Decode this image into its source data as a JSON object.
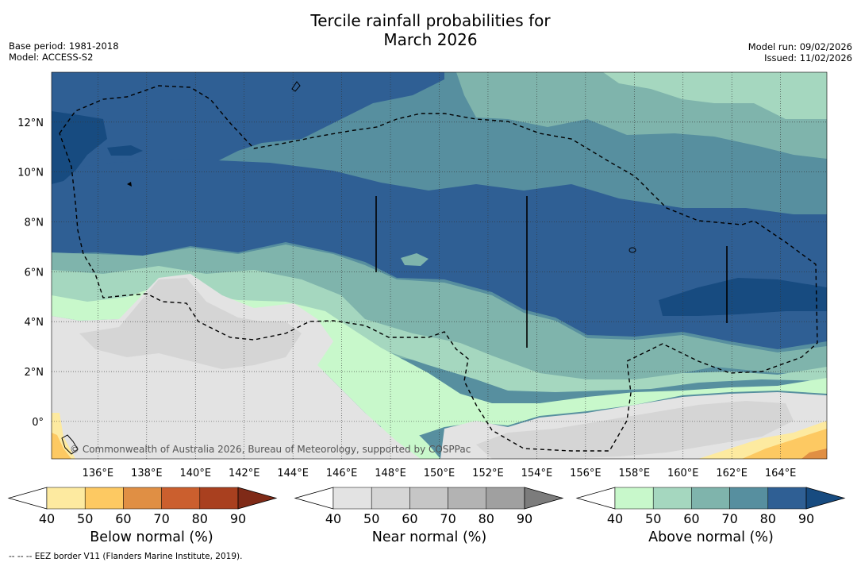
{
  "title": {
    "line1": "Tercile rainfall probabilities for",
    "line2": "March 2026"
  },
  "meta": {
    "base_period": "Base period: 1981-2018",
    "model": "Model: ACCESS-S2",
    "model_run": "Model run: 09/02/2026",
    "issued": "Issued: 11/02/2026"
  },
  "map": {
    "lat_labels": [
      {
        "value": 12,
        "label": "12°N"
      },
      {
        "value": 10,
        "label": "10°N"
      },
      {
        "value": 8,
        "label": "8°N"
      },
      {
        "value": 6,
        "label": "6°N"
      },
      {
        "value": 4,
        "label": "4°N"
      },
      {
        "value": 2,
        "label": "2°N"
      },
      {
        "value": 0,
        "label": "0°"
      }
    ],
    "lon_labels": [
      {
        "value": 136,
        "label": "136°E"
      },
      {
        "value": 138,
        "label": "138°E"
      },
      {
        "value": 140,
        "label": "140°E"
      },
      {
        "value": 142,
        "label": "142°E"
      },
      {
        "value": 144,
        "label": "144°E"
      },
      {
        "value": 146,
        "label": "146°E"
      },
      {
        "value": 148,
        "label": "148°E"
      },
      {
        "value": 150,
        "label": "150°E"
      },
      {
        "value": 152,
        "label": "152°E"
      },
      {
        "value": 154,
        "label": "154°E"
      },
      {
        "value": 156,
        "label": "156°E"
      },
      {
        "value": 158,
        "label": "158°E"
      },
      {
        "value": 160,
        "label": "160°E"
      },
      {
        "value": 162,
        "label": "162°E"
      },
      {
        "value": 164,
        "label": "164°E"
      }
    ],
    "copyright": "© Commonwealth of Australia 2026, Bureau of Meteorology, supported by COSPPac"
  },
  "colorbars": [
    {
      "name": "below",
      "label": "Below normal (%)",
      "ticks": [
        "40",
        "50",
        "60",
        "70",
        "80",
        "90"
      ],
      "colors": [
        "#fdeaa0",
        "#fdc962",
        "#e08f44",
        "#cb5f2e",
        "#a9401f"
      ],
      "extend": "#7f2a17"
    },
    {
      "name": "near",
      "label": "Near normal (%)",
      "ticks": [
        "40",
        "50",
        "60",
        "70",
        "80",
        "90"
      ],
      "colors": [
        "#e3e3e3",
        "#d5d5d5",
        "#c6c6c6",
        "#b3b3b3",
        "#a0a0a0"
      ],
      "extend": "#7c7c7c"
    },
    {
      "name": "above",
      "label": "Above normal (%)",
      "ticks": [
        "40",
        "50",
        "60",
        "70",
        "80",
        "90"
      ],
      "colors": [
        "#c8f8cb",
        "#a5d7bf",
        "#7fb4ac",
        "#578f9f",
        "#2f5f94"
      ],
      "extend": "#174b80"
    }
  ],
  "colors": {
    "above50": "#a5d7bf",
    "above60": "#7fb4ac",
    "above70": "#578f9f",
    "above80": "#2f5f94",
    "above90": "#174b80",
    "above40": "#c8f8cb",
    "near40": "#e3e3e3",
    "near50": "#d5d5d5",
    "below40": "#fdeaa0",
    "below50": "#fdc962",
    "below60": "#e08f44"
  },
  "footnote": "--  --  -- EEZ border V11 (Flanders Marine Institute, 2019)."
}
